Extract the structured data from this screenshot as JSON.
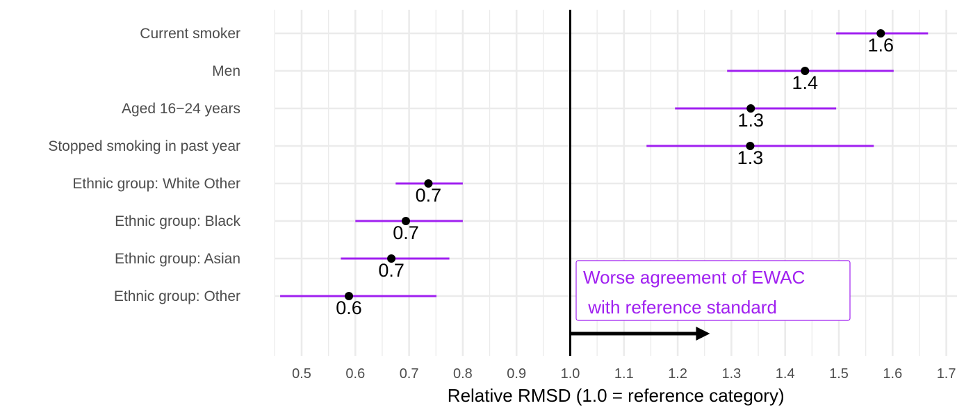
{
  "chart_data": {
    "type": "forest",
    "categories": [
      "Current smoker",
      "Men",
      "Aged 16−24 years",
      "Stopped smoking in past year",
      "Ethnic group: White Other",
      "Ethnic group: Black",
      "Ethnic group: Asian",
      "Ethnic group: Other"
    ],
    "values": [
      1.578,
      1.437,
      1.336,
      1.335,
      0.736,
      0.694,
      0.667,
      0.588
    ],
    "lower": [
      1.495,
      1.292,
      1.195,
      1.142,
      0.675,
      0.6,
      0.573,
      0.46
    ],
    "upper": [
      1.666,
      1.602,
      1.495,
      1.565,
      0.8,
      0.8,
      0.775,
      0.751
    ],
    "data_labels": [
      "1.6",
      "1.4",
      "1.3",
      "1.3",
      "0.7",
      "0.7",
      "0.7",
      "0.6"
    ],
    "xlabel": "Relative RMSD (1.0 = reference category)",
    "ylabel": "",
    "xlim": [
      0.45,
      1.72
    ],
    "xticks": [
      0.5,
      0.6,
      0.7,
      0.8,
      0.9,
      1.0,
      1.1,
      1.2,
      1.3,
      1.4,
      1.5,
      1.6,
      1.7
    ],
    "xtick_labels": [
      "0.5",
      "0.6",
      "0.7",
      "0.8",
      "0.9",
      "1.0",
      "1.1",
      "1.2",
      "1.3",
      "1.4",
      "1.5",
      "1.6",
      "1.7"
    ],
    "reference_line": 1.0,
    "arrow": {
      "from": 1.0,
      "to": 1.26
    },
    "annotation": {
      "line1": "Worse agreement of EWAC",
      "line2": " with reference standard"
    },
    "grid": true,
    "colors": {
      "interval": "#a020f0",
      "point": "#000000",
      "annotation": "#a020f0",
      "grid": "#ebebeb",
      "reference_line": "#000000"
    }
  }
}
